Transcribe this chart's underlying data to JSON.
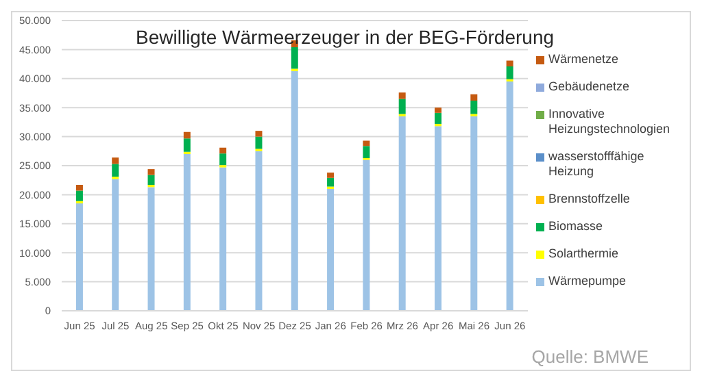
{
  "chart_data": {
    "type": "bar",
    "stacked": true,
    "title": "Bewilligte Wärmeerzeuger in der BEG-Förderung",
    "categories": [
      "Jun 25",
      "Jul 25",
      "Aug 25",
      "Sep 25",
      "Okt 25",
      "Nov 25",
      "Dez 25",
      "Jan 26",
      "Feb 26",
      "Mrz 26",
      "Apr 26",
      "Mai 26",
      "Jun 26"
    ],
    "series": [
      {
        "name": "Wärmepumpe",
        "color": "#9dc3e6",
        "values": [
          18500,
          22700,
          21300,
          27000,
          24700,
          27500,
          41300,
          21000,
          26000,
          33500,
          31800,
          33500,
          39500
        ]
      },
      {
        "name": "Solarthermie",
        "color": "#ffff00",
        "values": [
          400,
          400,
          400,
          400,
          400,
          400,
          400,
          400,
          300,
          400,
          400,
          400,
          400
        ]
      },
      {
        "name": "Biomasse",
        "color": "#00b050",
        "values": [
          1800,
          2200,
          1700,
          2300,
          2000,
          2100,
          3700,
          1500,
          2100,
          2600,
          1900,
          2300,
          2200
        ]
      },
      {
        "name": "Brennstoffzelle",
        "color": "#ffc000",
        "values": [
          0,
          0,
          0,
          0,
          0,
          0,
          0,
          0,
          0,
          0,
          0,
          0,
          0
        ]
      },
      {
        "name": "wasserstofffähige Heizung",
        "color": "#5b8fc9",
        "values": [
          0,
          0,
          0,
          0,
          0,
          0,
          0,
          0,
          0,
          0,
          0,
          0,
          0
        ]
      },
      {
        "name": "Innovative Heizungstechnologien",
        "color": "#70ad47",
        "values": [
          0,
          0,
          0,
          0,
          0,
          0,
          0,
          0,
          0,
          0,
          0,
          0,
          0
        ]
      },
      {
        "name": "Gebäudenetze",
        "color": "#8faadc",
        "values": [
          0,
          0,
          0,
          0,
          0,
          0,
          0,
          0,
          0,
          0,
          0,
          0,
          0
        ]
      },
      {
        "name": "Wärmenetze",
        "color": "#c55a11",
        "values": [
          1000,
          1100,
          1000,
          1100,
          1000,
          1000,
          1200,
          900,
          900,
          1100,
          900,
          1100,
          1000
        ]
      }
    ],
    "ylim": [
      0,
      50000
    ],
    "yticks": [
      {
        "value": 0,
        "label": "0"
      },
      {
        "value": 5000,
        "label": "5.000"
      },
      {
        "value": 10000,
        "label": "10.000"
      },
      {
        "value": 15000,
        "label": "15.000"
      },
      {
        "value": 20000,
        "label": "20.000"
      },
      {
        "value": 25000,
        "label": "25.000"
      },
      {
        "value": 30000,
        "label": "30.000"
      },
      {
        "value": 35000,
        "label": "35.000"
      },
      {
        "value": 40000,
        "label": "40.000"
      },
      {
        "value": 45000,
        "label": "45.000"
      },
      {
        "value": 50000,
        "label": "50.000"
      }
    ],
    "grid": "y",
    "legend": "right",
    "annotations": [
      "Quelle: BMWE"
    ]
  }
}
